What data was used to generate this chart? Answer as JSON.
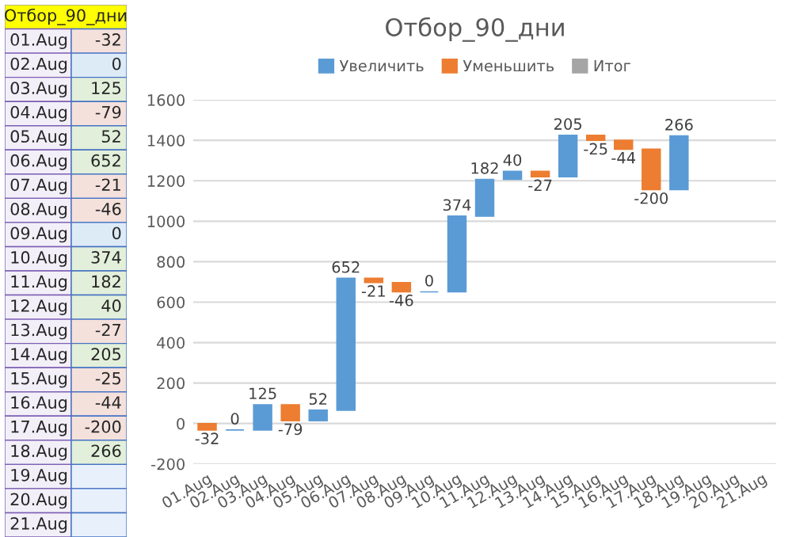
{
  "chart_data": [
    {
      "type": "bar",
      "title": "Отбор_90_дни",
      "categories": [
        "01.Aug",
        "02.Aug",
        "03.Aug",
        "04.Aug",
        "05.Aug",
        "06.Aug",
        "07.Aug",
        "08.Aug",
        "09.Aug",
        "10.Aug",
        "11.Aug",
        "12.Aug",
        "13.Aug",
        "14.Aug",
        "15.Aug",
        "16.Aug",
        "17.Aug",
        "18.Aug",
        "19.Aug",
        "20.Aug",
        "21.Aug"
      ],
      "series": [
        {
          "name": "Увеличить",
          "color": "#5b9bd5",
          "values": [
            null,
            0,
            125,
            null,
            52,
            652,
            null,
            null,
            0,
            374,
            182,
            40,
            null,
            205,
            null,
            null,
            null,
            266,
            null,
            null,
            null
          ],
          "base": [
            null,
            -32,
            -32,
            null,
            14,
            66,
            null,
            null,
            651,
            651,
            1025,
            1207,
            null,
            1220,
            null,
            null,
            null,
            1156,
            null,
            null,
            null
          ]
        },
        {
          "name": "Уменьшить",
          "color": "#ed7d31",
          "values": [
            -32,
            null,
            null,
            -79,
            null,
            null,
            -21,
            -46,
            null,
            null,
            null,
            null,
            -27,
            null,
            -25,
            -44,
            -200,
            null,
            null,
            null,
            null
          ],
          "base": [
            0,
            null,
            null,
            93,
            null,
            null,
            718,
            697,
            null,
            null,
            null,
            null,
            1247,
            null,
            1425,
            1400,
            1356,
            null,
            null,
            null,
            null
          ]
        },
        {
          "name": "Итог",
          "color": "#a5a5a5",
          "values": [
            null,
            null,
            null,
            null,
            null,
            null,
            null,
            null,
            null,
            null,
            null,
            null,
            null,
            null,
            null,
            null,
            null,
            null,
            null,
            null,
            null
          ]
        }
      ],
      "ylim": [
        -200,
        1600
      ],
      "yticks": [
        -200,
        0,
        200,
        400,
        600,
        800,
        1000,
        1200,
        1400,
        1600
      ],
      "grid": "y",
      "legend": "top",
      "data_labels": true
    },
    {
      "type": "other",
      "title": "Отбор_90_дни",
      "categories": [
        "01.Aug",
        "02.Aug",
        "03.Aug",
        "04.Aug",
        "05.Aug",
        "06.Aug",
        "07.Aug",
        "08.Aug",
        "09.Aug",
        "10.Aug",
        "11.Aug",
        "12.Aug",
        "13.Aug",
        "14.Aug",
        "15.Aug",
        "16.Aug",
        "17.Aug",
        "18.Aug",
        "19.Aug",
        "20.Aug",
        "21.Aug"
      ],
      "values": [
        -32,
        0,
        125,
        -79,
        52,
        652,
        -21,
        -46,
        0,
        374,
        182,
        40,
        -27,
        205,
        -25,
        -44,
        -200,
        266,
        null,
        null,
        null
      ],
      "data_labels": true
    }
  ]
}
